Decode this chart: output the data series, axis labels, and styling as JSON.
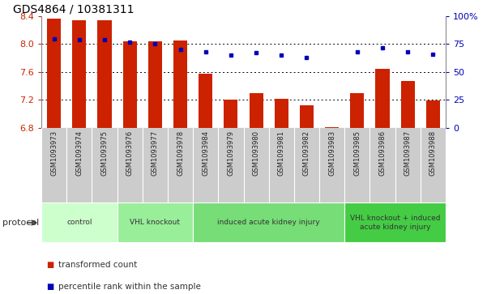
{
  "title": "GDS4864 / 10381311",
  "samples": [
    "GSM1093973",
    "GSM1093974",
    "GSM1093975",
    "GSM1093976",
    "GSM1093977",
    "GSM1093978",
    "GSM1093984",
    "GSM1093979",
    "GSM1093980",
    "GSM1093981",
    "GSM1093982",
    "GSM1093983",
    "GSM1093985",
    "GSM1093986",
    "GSM1093987",
    "GSM1093988"
  ],
  "bar_values": [
    8.37,
    8.34,
    8.34,
    8.04,
    8.04,
    8.05,
    7.58,
    7.21,
    7.3,
    7.22,
    7.12,
    6.81,
    7.3,
    7.64,
    7.47,
    7.19
  ],
  "dot_values": [
    80,
    79,
    79,
    77,
    75,
    70,
    68,
    65,
    67,
    65,
    63,
    2,
    68,
    72,
    68,
    66
  ],
  "ylim_left": [
    6.8,
    8.4
  ],
  "ylim_right": [
    0,
    100
  ],
  "yticks_left": [
    6.8,
    7.2,
    7.6,
    8.0,
    8.4
  ],
  "yticks_right": [
    0,
    25,
    50,
    75,
    100
  ],
  "bar_color": "#cc2200",
  "dot_color": "#0000bb",
  "bar_width": 0.55,
  "bg_color": "#ffffff",
  "plot_bg": "#ffffff",
  "tick_bg": "#cccccc",
  "groups": [
    {
      "label": "control",
      "start": 0,
      "end": 3,
      "color": "#ccffcc"
    },
    {
      "label": "VHL knockout",
      "start": 3,
      "end": 6,
      "color": "#99ee99"
    },
    {
      "label": "induced acute kidney injury",
      "start": 6,
      "end": 12,
      "color": "#77dd77"
    },
    {
      "label": "VHL knockout + induced\nacute kidney injury",
      "start": 12,
      "end": 16,
      "color": "#44cc44"
    }
  ],
  "tick_label_color_left": "#cc2200",
  "tick_label_color_right": "#0000bb",
  "title_color": "#000000",
  "legend_items": [
    "transformed count",
    "percentile rank within the sample"
  ],
  "protocol_label": "protocol"
}
